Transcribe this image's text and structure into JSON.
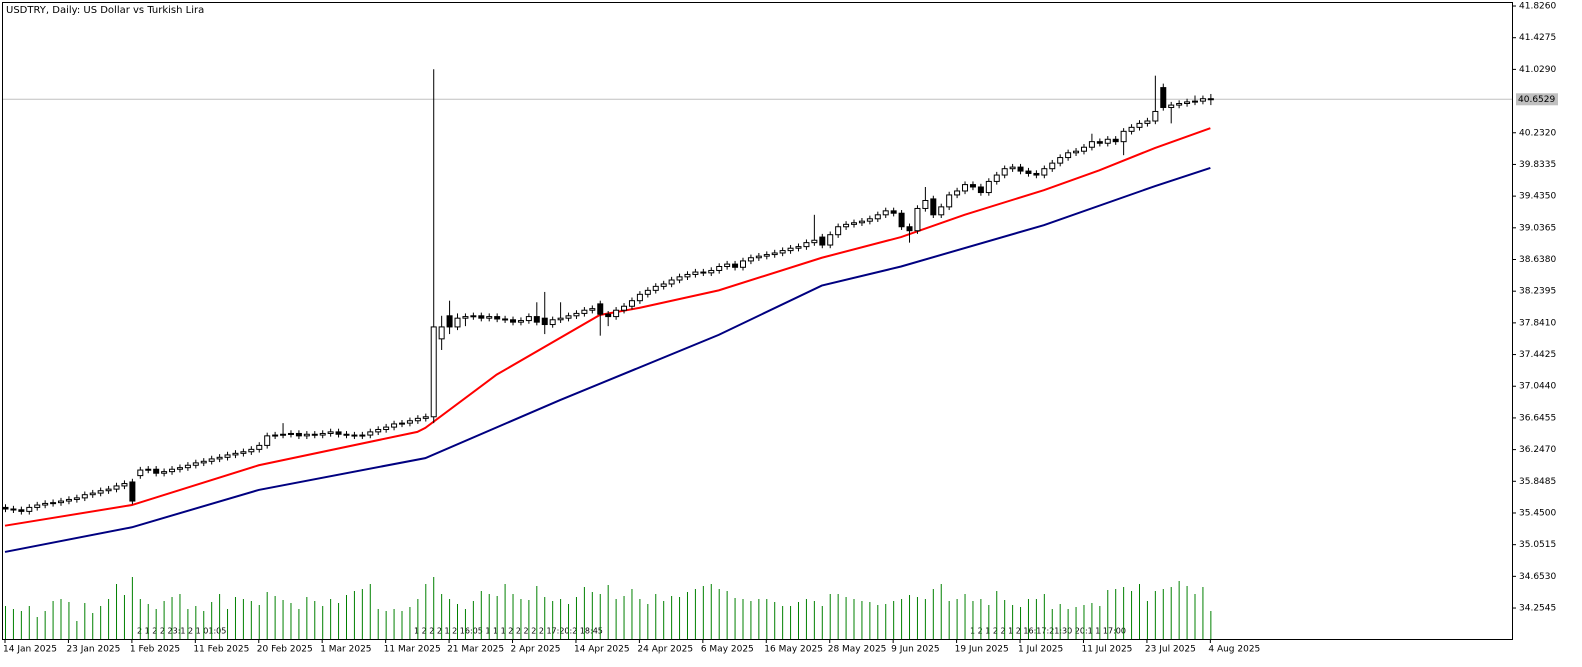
{
  "chart_data": {
    "type": "candlestick",
    "title": "USDTRY, Daily:  US Dollar vs Turkish Lira",
    "categories": [
      "14 Jan 2025",
      null,
      null,
      null,
      null,
      null,
      null,
      null,
      "23 Jan 2025",
      null,
      null,
      null,
      null,
      null,
      null,
      null,
      "1 Feb 2025",
      null,
      null,
      null,
      null,
      null,
      null,
      null,
      "11 Feb 2025",
      null,
      null,
      null,
      null,
      null,
      null,
      null,
      "20 Feb 2025",
      null,
      null,
      null,
      null,
      null,
      null,
      null,
      "1 Mar 2025",
      null,
      null,
      null,
      null,
      null,
      null,
      null,
      "11 Mar 2025",
      null,
      null,
      null,
      null,
      null,
      null,
      null,
      "21 Mar 2025",
      null,
      null,
      null,
      null,
      null,
      null,
      null,
      "2 Apr 2025",
      null,
      null,
      null,
      null,
      null,
      null,
      null,
      "14 Apr 2025",
      null,
      null,
      null,
      null,
      null,
      null,
      null,
      "24 Apr 2025",
      null,
      null,
      null,
      null,
      null,
      null,
      null,
      "6 May 2025",
      null,
      null,
      null,
      null,
      null,
      null,
      null,
      "16 May 2025",
      null,
      null,
      null,
      null,
      null,
      null,
      null,
      "28 May 2025",
      null,
      null,
      null,
      null,
      null,
      null,
      null,
      "9 Jun 2025",
      null,
      null,
      null,
      null,
      null,
      null,
      null,
      "19 Jun 2025",
      null,
      null,
      null,
      null,
      null,
      null,
      null,
      "1 Jul 2025",
      null,
      null,
      null,
      null,
      null,
      null,
      null,
      "11 Jul 2025",
      null,
      null,
      null,
      null,
      null,
      null,
      null,
      "23 Jul 2025",
      null,
      null,
      null,
      null,
      null,
      null,
      null,
      "4 Aug 2025"
    ],
    "open": [
      35.52,
      35.5,
      35.49,
      35.47,
      35.52,
      35.55,
      35.57,
      35.58,
      35.6,
      35.62,
      35.64,
      35.68,
      35.7,
      35.73,
      35.75,
      35.79,
      35.84,
      35.92,
      35.99,
      36.0,
      35.95,
      35.97,
      36.0,
      36.02,
      36.05,
      36.08,
      36.1,
      36.13,
      36.15,
      36.18,
      36.2,
      36.22,
      36.25,
      36.3,
      36.42,
      36.43,
      36.44,
      36.45,
      36.42,
      36.44,
      36.43,
      36.45,
      36.47,
      36.44,
      36.43,
      36.42,
      36.43,
      36.47,
      36.5,
      36.53,
      36.57,
      36.58,
      36.61,
      36.64,
      36.66,
      37.64,
      37.93,
      37.79,
      37.9,
      37.92,
      37.93,
      37.9,
      37.92,
      37.89,
      37.88,
      37.85,
      37.87,
      37.92,
      37.9,
      37.82,
      37.88,
      37.9,
      37.93,
      37.96,
      38.0,
      38.08,
      37.95,
      37.92,
      38.0,
      38.05,
      38.12,
      38.2,
      38.25,
      38.3,
      38.33,
      38.38,
      38.42,
      38.45,
      38.48,
      38.47,
      38.5,
      38.55,
      38.58,
      38.54,
      38.62,
      38.66,
      38.68,
      38.7,
      38.72,
      38.75,
      38.78,
      38.8,
      38.85,
      38.92,
      38.82,
      38.95,
      39.05,
      39.08,
      39.1,
      39.12,
      39.15,
      39.2,
      39.25,
      39.22,
      39.05,
      39.0,
      39.28,
      39.4,
      39.2,
      39.3,
      39.45,
      39.5,
      39.58,
      39.55,
      39.48,
      39.62,
      39.7,
      39.78,
      39.8,
      39.75,
      39.72,
      39.7,
      39.78,
      39.85,
      39.92,
      39.98,
      40.0,
      40.05,
      40.12,
      40.1,
      40.15,
      40.12,
      40.25,
      40.3,
      40.35,
      40.38,
      40.8,
      40.55,
      40.58,
      40.6,
      40.62,
      40.63,
      40.66
    ],
    "high": [
      35.56,
      35.54,
      35.53,
      35.56,
      35.59,
      35.61,
      35.62,
      35.64,
      35.66,
      35.68,
      35.72,
      35.74,
      35.77,
      35.79,
      35.83,
      35.86,
      35.88,
      36.03,
      36.04,
      36.04,
      36.01,
      36.04,
      36.06,
      36.09,
      36.12,
      36.14,
      36.17,
      36.19,
      36.22,
      36.24,
      36.26,
      36.29,
      36.34,
      36.46,
      36.47,
      36.58,
      36.49,
      36.49,
      36.48,
      36.48,
      36.49,
      36.51,
      36.51,
      36.48,
      36.47,
      36.47,
      36.51,
      36.54,
      36.57,
      36.61,
      36.62,
      36.65,
      36.68,
      36.7,
      41.03,
      37.93,
      38.12,
      37.96,
      37.96,
      37.97,
      37.97,
      37.96,
      37.96,
      37.93,
      37.92,
      37.91,
      37.96,
      38.1,
      38.23,
      37.92,
      38.1,
      37.97,
      38.0,
      38.04,
      38.06,
      38.12,
      37.99,
      38.04,
      38.09,
      38.16,
      38.24,
      38.29,
      38.34,
      38.37,
      38.42,
      38.46,
      38.49,
      38.52,
      38.52,
      38.54,
      38.59,
      38.62,
      38.62,
      38.66,
      38.7,
      38.72,
      38.74,
      38.76,
      38.79,
      38.82,
      38.84,
      38.89,
      39.2,
      38.96,
      38.99,
      39.09,
      39.12,
      39.14,
      39.16,
      39.19,
      39.24,
      39.29,
      39.29,
      39.26,
      39.09,
      39.32,
      39.55,
      39.44,
      39.34,
      39.49,
      39.54,
      39.62,
      39.62,
      39.59,
      39.66,
      39.74,
      39.82,
      39.84,
      39.84,
      39.79,
      39.76,
      39.82,
      39.89,
      39.96,
      40.02,
      40.04,
      40.09,
      40.22,
      40.16,
      40.19,
      40.19,
      40.29,
      40.34,
      40.39,
      40.42,
      40.95,
      40.85,
      40.62,
      40.64,
      40.66,
      40.7,
      40.7,
      40.72
    ],
    "low": [
      35.46,
      35.45,
      35.43,
      35.43,
      35.48,
      35.51,
      35.53,
      35.54,
      35.56,
      35.58,
      35.6,
      35.64,
      35.66,
      35.69,
      35.71,
      35.75,
      35.56,
      35.88,
      35.95,
      35.91,
      35.91,
      35.93,
      35.96,
      35.98,
      36.01,
      36.04,
      36.06,
      36.09,
      36.11,
      36.14,
      36.16,
      36.18,
      36.21,
      36.26,
      36.38,
      36.39,
      36.4,
      36.38,
      36.38,
      36.39,
      36.39,
      36.41,
      36.4,
      36.39,
      36.38,
      36.38,
      36.39,
      36.43,
      36.46,
      36.49,
      36.53,
      36.54,
      36.57,
      36.6,
      36.58,
      37.5,
      37.7,
      37.75,
      37.8,
      37.88,
      37.86,
      37.86,
      37.85,
      37.84,
      37.81,
      37.81,
      37.83,
      37.81,
      37.7,
      37.78,
      37.84,
      37.86,
      37.89,
      37.92,
      37.96,
      37.68,
      37.8,
      37.88,
      37.96,
      38.01,
      38.08,
      38.16,
      38.21,
      38.26,
      38.29,
      38.34,
      38.38,
      38.41,
      38.43,
      38.43,
      38.46,
      38.51,
      38.5,
      38.5,
      38.58,
      38.62,
      38.64,
      38.66,
      38.68,
      38.71,
      38.74,
      38.76,
      38.81,
      38.78,
      38.78,
      38.91,
      39.01,
      39.04,
      39.06,
      39.08,
      39.11,
      39.16,
      39.18,
      39.01,
      38.85,
      38.96,
      39.24,
      39.16,
      39.16,
      39.26,
      39.41,
      39.46,
      39.51,
      39.44,
      39.44,
      39.58,
      39.66,
      39.74,
      39.71,
      39.68,
      39.66,
      39.66,
      39.74,
      39.81,
      39.88,
      39.94,
      39.96,
      40.01,
      40.06,
      40.06,
      40.08,
      39.95,
      40.21,
      40.26,
      40.31,
      40.34,
      40.51,
      40.35,
      40.54,
      40.56,
      40.58,
      40.59,
      40.58
    ],
    "close": [
      35.5,
      35.49,
      35.47,
      35.52,
      35.55,
      35.57,
      35.58,
      35.6,
      35.62,
      35.64,
      35.68,
      35.7,
      35.73,
      35.75,
      35.79,
      35.82,
      35.6,
      35.99,
      36.0,
      35.95,
      35.97,
      36.0,
      36.02,
      36.05,
      36.08,
      36.1,
      36.13,
      36.15,
      36.18,
      36.2,
      36.22,
      36.25,
      36.3,
      36.42,
      36.43,
      36.44,
      36.45,
      36.42,
      36.44,
      36.43,
      36.45,
      36.47,
      36.44,
      36.43,
      36.42,
      36.43,
      36.47,
      36.5,
      36.53,
      36.57,
      36.58,
      36.61,
      36.64,
      36.66,
      37.79,
      37.79,
      37.79,
      37.9,
      37.92,
      37.93,
      37.9,
      37.92,
      37.89,
      37.88,
      37.85,
      37.87,
      37.92,
      37.85,
      37.82,
      37.88,
      37.9,
      37.93,
      37.96,
      38.0,
      38.02,
      37.95,
      37.92,
      38.0,
      38.05,
      38.12,
      38.2,
      38.25,
      38.3,
      38.33,
      38.38,
      38.42,
      38.45,
      38.48,
      38.47,
      38.5,
      38.55,
      38.58,
      38.54,
      38.62,
      38.66,
      38.68,
      38.7,
      38.72,
      38.75,
      38.78,
      38.8,
      38.85,
      38.88,
      38.82,
      38.95,
      39.05,
      39.08,
      39.1,
      39.12,
      39.15,
      39.2,
      39.25,
      39.22,
      39.05,
      39.0,
      39.28,
      39.38,
      39.2,
      39.3,
      39.45,
      39.5,
      39.58,
      39.55,
      39.48,
      39.62,
      39.7,
      39.78,
      39.8,
      39.75,
      39.72,
      39.7,
      39.78,
      39.85,
      39.92,
      39.98,
      40.0,
      40.05,
      40.12,
      40.1,
      40.15,
      40.12,
      40.25,
      40.3,
      40.35,
      40.38,
      40.5,
      40.55,
      40.58,
      40.6,
      40.62,
      40.63,
      40.66,
      40.65
    ],
    "up_color": "#ffffff",
    "down_color": "#000000",
    "moving_averages": [
      {
        "color": "#ff0000",
        "x": [
          0,
          16,
          32,
          52,
          53,
          62,
          75,
          80,
          90,
          103,
          113,
          121,
          131,
          138,
          145,
          152
        ],
        "values": [
          35.29,
          35.55,
          36.05,
          36.47,
          36.52,
          37.19,
          37.94,
          38.03,
          38.25,
          38.66,
          38.92,
          39.2,
          39.51,
          39.76,
          40.04,
          40.29
        ]
      },
      {
        "color": "#000080",
        "x": [
          0,
          16,
          32,
          53,
          70,
          90,
          103,
          113,
          131,
          145,
          152
        ],
        "values": [
          34.96,
          35.27,
          35.74,
          36.14,
          36.87,
          37.69,
          38.31,
          38.55,
          39.07,
          39.56,
          39.79
        ]
      }
    ],
    "volume": {
      "color": "#008000",
      "vlim": [
        0,
        100
      ],
      "values": [
        33,
        30,
        28,
        33,
        22,
        28,
        38,
        40,
        37,
        18,
        36,
        26,
        33,
        40,
        55,
        44,
        62,
        40,
        35,
        30,
        38,
        42,
        45,
        30,
        33,
        28,
        37,
        45,
        30,
        42,
        40,
        38,
        34,
        47,
        43,
        39,
        36,
        30,
        42,
        38,
        33,
        40,
        36,
        44,
        48,
        50,
        55,
        30,
        28,
        30,
        28,
        32,
        40,
        55,
        62,
        45,
        40,
        35,
        30,
        38,
        48,
        45,
        43,
        55,
        45,
        40,
        39,
        53,
        42,
        38,
        40,
        35,
        42,
        52,
        47,
        45,
        54,
        40,
        43,
        50,
        40,
        35,
        45,
        38,
        43,
        42,
        47,
        50,
        53,
        55,
        50,
        48,
        41,
        40,
        38,
        40,
        40,
        37,
        33,
        33,
        37,
        40,
        38,
        33,
        45,
        45,
        42,
        40,
        38,
        37,
        34,
        35,
        38,
        40,
        44,
        42,
        40,
        50,
        55,
        38,
        40,
        45,
        38,
        40,
        34,
        48,
        39,
        34,
        32,
        40,
        40,
        45,
        30,
        35,
        30,
        32,
        34,
        36,
        33,
        49,
        50,
        52,
        48,
        55,
        38,
        48,
        50,
        52,
        58,
        53,
        45,
        52,
        28
      ]
    },
    "last_price": 40.6529,
    "separator_labels": [
      "2 1 2 2 23:1 2 1 01:05",
      "1 2 2 2 1 2 16:05 1 1 1 2 2 2 2 2 17:20:2 18:45",
      "1 2 1 2 2 1 2 16:17:21:30 20:1 1 17:00"
    ],
    "ylim": [
      33.865,
      41.864
    ],
    "yticks": [
      {
        "value": 41.826,
        "label": "41.8260"
      },
      {
        "value": 41.4275,
        "label": "41.4275"
      },
      {
        "value": 41.029,
        "label": "41.0290"
      },
      {
        "value": 40.232,
        "label": "40.2320"
      },
      {
        "value": 39.8335,
        "label": "39.8335"
      },
      {
        "value": 39.435,
        "label": "39.4350"
      },
      {
        "value": 39.0365,
        "label": "39.0365"
      },
      {
        "value": 38.638,
        "label": "38.6380"
      },
      {
        "value": 38.2395,
        "label": "38.2395"
      },
      {
        "value": 37.841,
        "label": "37.8410"
      },
      {
        "value": 37.4425,
        "label": "37.4425"
      },
      {
        "value": 37.044,
        "label": "37.0440"
      },
      {
        "value": 36.6455,
        "label": "36.6455"
      },
      {
        "value": 36.247,
        "label": "36.2470"
      },
      {
        "value": 35.8485,
        "label": "35.8485"
      },
      {
        "value": 35.45,
        "label": "35.4500"
      },
      {
        "value": 35.0515,
        "label": "35.0515"
      },
      {
        "value": 34.653,
        "label": "34.6530"
      },
      {
        "value": 34.2545,
        "label": "34.2545"
      }
    ],
    "grid": false
  }
}
